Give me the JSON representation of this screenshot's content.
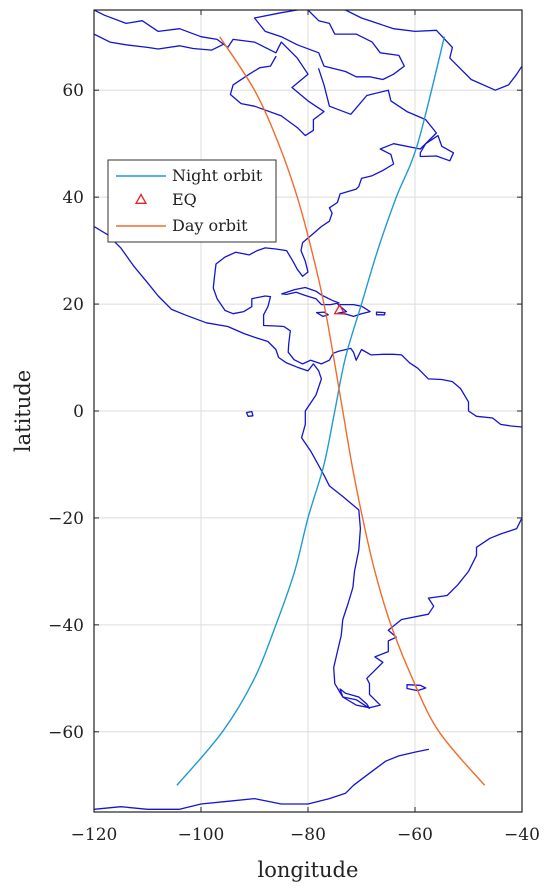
{
  "chart_data": {
    "type": "map",
    "xlabel": "longitude",
    "ylabel": "latitude",
    "xlim": [
      -120,
      -40
    ],
    "ylim": [
      -75,
      75
    ],
    "x_ticks": [
      -120,
      -100,
      -80,
      -60,
      -40
    ],
    "y_ticks": [
      -60,
      -40,
      -20,
      0,
      20,
      40,
      60
    ],
    "x_tick_labels": [
      "−120",
      "−100",
      "−80",
      "−60",
      "−40"
    ],
    "y_tick_labels": [
      "−60",
      "−40",
      "−20",
      "0",
      "20",
      "40",
      "60"
    ],
    "grid": true,
    "legend_position": "upper-left",
    "colors": {
      "coastline": "#1414d2",
      "night_orbit": "#1f9bd0",
      "day_orbit": "#f26b2a",
      "eq": "#e8201f"
    },
    "series": [
      {
        "name": "Night orbit",
        "kind": "line",
        "x": [
          -104.5,
          -96,
          -90,
          -86,
          -82.5,
          -80,
          -77,
          -75,
          -73,
          -70,
          -67,
          -63.5,
          -59.5,
          -54.5
        ],
        "y": [
          -70,
          -60,
          -50,
          -40,
          -30,
          -20,
          -10,
          0,
          10,
          20,
          30,
          40,
          50,
          70
        ]
      },
      {
        "name": "EQ",
        "kind": "marker",
        "marker": "triangle",
        "x": [
          -74.1
        ],
        "y": [
          18.8
        ]
      },
      {
        "name": "Day orbit",
        "kind": "line",
        "x": [
          -96.5,
          -90,
          -85.5,
          -82,
          -79.3,
          -77,
          -75.2,
          -73.5,
          -71.8,
          -69.8,
          -67.5,
          -64.5,
          -60.5,
          -55.5,
          -47
        ],
        "y": [
          70,
          60,
          50,
          40,
          30,
          20,
          10,
          0,
          -10,
          -20,
          -30,
          -40,
          -50,
          -60,
          -70
        ]
      }
    ],
    "coastlines": [
      [
        [
          -120,
          34.5
        ],
        [
          -117.5,
          33
        ],
        [
          -115,
          30.5
        ],
        [
          -112.5,
          27
        ],
        [
          -110,
          24
        ],
        [
          -108,
          21.5
        ],
        [
          -105.5,
          19
        ],
        [
          -103,
          18
        ],
        [
          -99,
          16.5
        ],
        [
          -95,
          15.8
        ],
        [
          -92,
          14.5
        ],
        [
          -90,
          13.8
        ],
        [
          -87.5,
          13
        ],
        [
          -86,
          11.5
        ],
        [
          -85.5,
          10
        ],
        [
          -84,
          9
        ],
        [
          -82,
          8.2
        ],
        [
          -80,
          7.5
        ],
        [
          -79,
          8.8
        ],
        [
          -78,
          7.5
        ],
        [
          -77.5,
          6
        ],
        [
          -78.5,
          3
        ],
        [
          -80.5,
          0
        ],
        [
          -80.5,
          -2.5
        ],
        [
          -81.2,
          -5
        ],
        [
          -79.5,
          -7.5
        ],
        [
          -77,
          -12
        ],
        [
          -76,
          -14
        ],
        [
          -73.5,
          -16
        ],
        [
          -70.5,
          -18.5
        ],
        [
          -70.2,
          -22
        ],
        [
          -70.5,
          -26
        ],
        [
          -71.3,
          -30
        ],
        [
          -71.6,
          -33
        ],
        [
          -72.5,
          -36
        ],
        [
          -73.5,
          -39
        ],
        [
          -73.8,
          -42
        ],
        [
          -74.5,
          -45
        ],
        [
          -75.2,
          -48
        ],
        [
          -75,
          -51
        ],
        [
          -73.5,
          -53.5
        ],
        [
          -71,
          -55
        ],
        [
          -68.5,
          -55.5
        ],
        [
          -66.5,
          -55
        ],
        [
          -68.5,
          -53
        ],
        [
          -68.5,
          -51
        ],
        [
          -69,
          -50
        ],
        [
          -67.5,
          -48.5
        ],
        [
          -66,
          -47
        ],
        [
          -67.5,
          -46
        ],
        [
          -65,
          -45
        ],
        [
          -65,
          -43
        ],
        [
          -63.5,
          -42.3
        ],
        [
          -65,
          -41
        ],
        [
          -62.5,
          -39
        ],
        [
          -57.5,
          -38
        ],
        [
          -56.5,
          -36.5
        ],
        [
          -57.5,
          -35
        ],
        [
          -54,
          -34.5
        ],
        [
          -52,
          -32.5
        ],
        [
          -50,
          -30
        ],
        [
          -48.5,
          -27
        ],
        [
          -48.5,
          -25.5
        ],
        [
          -46,
          -23.8
        ],
        [
          -44,
          -23
        ],
        [
          -41,
          -22
        ],
        [
          -40,
          -20
        ]
      ],
      [
        [
          -120,
          75
        ],
        [
          -118,
          74
        ],
        [
          -114,
          72.5
        ],
        [
          -111,
          73
        ],
        [
          -108,
          71
        ],
        [
          -104,
          71.5
        ],
        [
          -100,
          70
        ],
        [
          -97,
          69.5
        ],
        [
          -95,
          68
        ],
        [
          -94,
          69.5
        ],
        [
          -90,
          69
        ],
        [
          -88,
          68
        ],
        [
          -86,
          67
        ],
        [
          -85,
          69
        ],
        [
          -82,
          66
        ],
        [
          -80,
          63
        ],
        [
          -83,
          60.5
        ],
        [
          -80,
          58
        ],
        [
          -77,
          56
        ],
        [
          -79,
          54.5
        ],
        [
          -79,
          52.5
        ],
        [
          -80.5,
          51.5
        ],
        [
          -82,
          53
        ],
        [
          -85,
          55.2
        ],
        [
          -90,
          57
        ],
        [
          -92.5,
          57.5
        ],
        [
          -94.5,
          59.2
        ],
        [
          -94,
          61
        ],
        [
          -91,
          63
        ],
        [
          -89,
          64.2
        ],
        [
          -87,
          64.5
        ],
        [
          -86,
          66.3
        ]
      ],
      [
        [
          -78,
          64
        ],
        [
          -77,
          61
        ],
        [
          -76,
          57
        ],
        [
          -72,
          55.5
        ],
        [
          -69,
          59
        ],
        [
          -65,
          60
        ],
        [
          -64.5,
          58
        ],
        [
          -61.5,
          56
        ],
        [
          -58,
          54.5
        ],
        [
          -56,
          52
        ],
        [
          -59,
          49
        ],
        [
          -64,
          50
        ],
        [
          -66.5,
          49
        ],
        [
          -64.5,
          48
        ],
        [
          -64,
          46.2
        ],
        [
          -66,
          45
        ],
        [
          -68,
          44
        ],
        [
          -70,
          43.5
        ],
        [
          -70.5,
          42
        ],
        [
          -71,
          41.5
        ],
        [
          -74,
          40.6
        ],
        [
          -74.5,
          39
        ],
        [
          -76,
          38
        ],
        [
          -75.5,
          37
        ],
        [
          -76,
          35.5
        ],
        [
          -77.5,
          34.5
        ],
        [
          -79,
          33.2
        ],
        [
          -81,
          31.5
        ],
        [
          -81.3,
          30
        ],
        [
          -80.5,
          28
        ],
        [
          -80,
          26
        ],
        [
          -81,
          25.2
        ],
        [
          -82,
          26.5
        ],
        [
          -82.8,
          28
        ],
        [
          -84,
          30
        ],
        [
          -86,
          30.3
        ],
        [
          -88,
          30.5
        ],
        [
          -89.5,
          30
        ],
        [
          -91,
          29.2
        ],
        [
          -93.5,
          29.7
        ],
        [
          -95.5,
          28.8
        ],
        [
          -97.2,
          27.5
        ],
        [
          -97.5,
          25
        ],
        [
          -97.7,
          23
        ],
        [
          -97,
          21
        ],
        [
          -95.5,
          18.8
        ],
        [
          -94,
          18.2
        ],
        [
          -92,
          18.6
        ],
        [
          -90.5,
          19.5
        ],
        [
          -90.5,
          21
        ],
        [
          -88,
          21.5
        ],
        [
          -87,
          21.4
        ],
        [
          -87.5,
          19.5
        ],
        [
          -88.3,
          18
        ],
        [
          -88.3,
          16
        ],
        [
          -86,
          15.9
        ],
        [
          -84.5,
          15.8
        ],
        [
          -83.3,
          15
        ],
        [
          -83.6,
          12.5
        ],
        [
          -83.7,
          11
        ],
        [
          -82.6,
          9.6
        ],
        [
          -81,
          8.8
        ],
        [
          -79.5,
          9.5
        ],
        [
          -77.5,
          8.8
        ],
        [
          -76,
          9.5
        ],
        [
          -75.3,
          10.8
        ],
        [
          -74.2,
          11.2
        ],
        [
          -72,
          11.7
        ],
        [
          -71.5,
          11
        ],
        [
          -71,
          9.5
        ],
        [
          -70,
          11.5
        ],
        [
          -68.2,
          10.5
        ],
        [
          -66,
          10.6
        ],
        [
          -64,
          10.6
        ],
        [
          -62.5,
          10.5
        ],
        [
          -61,
          9
        ],
        [
          -59.5,
          8
        ],
        [
          -57.5,
          6
        ],
        [
          -55,
          5.9
        ],
        [
          -53,
          5.5
        ],
        [
          -51.5,
          4.2
        ],
        [
          -50,
          1.7
        ],
        [
          -50,
          0
        ],
        [
          -48.5,
          -1
        ],
        [
          -45.5,
          -1.3
        ],
        [
          -44,
          -2.5
        ],
        [
          -42,
          -2.8
        ],
        [
          -40,
          -3
        ]
      ],
      [
        [
          -84.9,
          21.9
        ],
        [
          -82.5,
          22.7
        ],
        [
          -80.5,
          23.1
        ],
        [
          -78.5,
          22.4
        ],
        [
          -77.5,
          21.7
        ],
        [
          -75.5,
          20.7
        ],
        [
          -74.2,
          20.2
        ],
        [
          -75.8,
          19.9
        ],
        [
          -77.5,
          19.9
        ],
        [
          -78.5,
          21
        ],
        [
          -80.5,
          21.6
        ],
        [
          -82.2,
          22.2
        ],
        [
          -84,
          21.8
        ],
        [
          -84.9,
          21.9
        ]
      ],
      [
        [
          -74.4,
          19.9
        ],
        [
          -72.5,
          19.9
        ],
        [
          -71.5,
          19.9
        ],
        [
          -70,
          19.6
        ],
        [
          -68.4,
          18.6
        ],
        [
          -70,
          18.2
        ],
        [
          -71.5,
          17.7
        ],
        [
          -72.8,
          18.1
        ],
        [
          -74.4,
          18.3
        ],
        [
          -72.8,
          18.6
        ],
        [
          -74.4,
          19.9
        ]
      ],
      [
        [
          -78.4,
          18.4
        ],
        [
          -77,
          18.5
        ],
        [
          -76.2,
          18
        ],
        [
          -77.2,
          17.7
        ],
        [
          -78.4,
          18.4
        ]
      ],
      [
        [
          -67.2,
          18.5
        ],
        [
          -65.6,
          18.4
        ],
        [
          -65.7,
          18
        ],
        [
          -67.2,
          18
        ],
        [
          -67.2,
          18.5
        ]
      ],
      [
        [
          -80,
          75
        ],
        [
          -78,
          73
        ],
        [
          -76,
          72.5
        ],
        [
          -75,
          70.5
        ],
        [
          -71,
          70.5
        ],
        [
          -68,
          69
        ],
        [
          -66.5,
          67
        ],
        [
          -63,
          66.5
        ],
        [
          -62,
          64.5
        ],
        [
          -64,
          63
        ],
        [
          -66,
          62
        ],
        [
          -68.5,
          62.5
        ],
        [
          -71,
          62.5
        ],
        [
          -73,
          63.5
        ],
        [
          -77,
          64.5
        ],
        [
          -78,
          67
        ],
        [
          -82,
          68.5
        ],
        [
          -85,
          70
        ],
        [
          -88,
          71
        ],
        [
          -90,
          73.5
        ],
        [
          -85,
          74.5
        ],
        [
          -82,
          75
        ]
      ],
      [
        [
          -73,
          75
        ],
        [
          -70,
          73.5
        ],
        [
          -64,
          71.5
        ],
        [
          -60,
          71
        ],
        [
          -56,
          71.2
        ],
        [
          -53,
          68
        ],
        [
          -53.5,
          66
        ],
        [
          -51.5,
          64
        ],
        [
          -49.5,
          62
        ],
        [
          -45,
          60
        ],
        [
          -42.5,
          61
        ],
        [
          -41,
          63
        ],
        [
          -40,
          64.5
        ]
      ],
      [
        [
          -120,
          70.5
        ],
        [
          -117,
          69
        ],
        [
          -114,
          68.5
        ],
        [
          -110,
          68
        ],
        [
          -108,
          67.7
        ],
        [
          -104,
          68.3
        ],
        [
          -101.5,
          67.8
        ],
        [
          -98,
          67.5
        ],
        [
          -96,
          68.5
        ]
      ],
      [
        [
          -59,
          47.6
        ],
        [
          -56,
          47.7
        ],
        [
          -53.5,
          46.8
        ],
        [
          -52.8,
          48.3
        ],
        [
          -55,
          49.5
        ],
        [
          -55.7,
          51.5
        ],
        [
          -58,
          50
        ],
        [
          -59,
          48.3
        ],
        [
          -59,
          47.6
        ]
      ],
      [
        [
          -61.5,
          -51.2
        ],
        [
          -59,
          -51.3
        ],
        [
          -58,
          -51.8
        ],
        [
          -59.5,
          -52.3
        ],
        [
          -61.5,
          -51.9
        ],
        [
          -61.5,
          -51.2
        ]
      ],
      [
        [
          -120,
          -74.5
        ],
        [
          -115,
          -74
        ],
        [
          -110,
          -74.5
        ],
        [
          -104,
          -74.5
        ],
        [
          -100,
          -73.5
        ],
        [
          -95,
          -73
        ],
        [
          -90,
          -72.5
        ],
        [
          -85,
          -73.5
        ],
        [
          -80,
          -73.5
        ],
        [
          -76,
          -72.5
        ],
        [
          -73,
          -71.5
        ],
        [
          -71.5,
          -70
        ],
        [
          -69.5,
          -68.5
        ],
        [
          -67.5,
          -67
        ],
        [
          -65.5,
          -65.5
        ],
        [
          -63,
          -64.5
        ],
        [
          -60,
          -63.8
        ],
        [
          -57.5,
          -63.3
        ]
      ],
      [
        [
          -68.5,
          -55.6
        ],
        [
          -71,
          -54
        ],
        [
          -73.5,
          -53.5
        ],
        [
          -74,
          -52
        ],
        [
          -73,
          -52.8
        ],
        [
          -70.5,
          -53.5
        ],
        [
          -69,
          -54.8
        ],
        [
          -68.5,
          -55.6
        ]
      ],
      [
        [
          -91.5,
          -0.3
        ],
        [
          -90.5,
          -0.1
        ],
        [
          -90.3,
          -0.9
        ],
        [
          -91.2,
          -1
        ],
        [
          -91.5,
          -0.3
        ]
      ]
    ]
  },
  "legend": {
    "items": [
      {
        "label": "Night orbit",
        "color": "#1f9bd0",
        "marker": "line"
      },
      {
        "label": "EQ",
        "color": "#e8201f",
        "marker": "triangle"
      },
      {
        "label": "Day orbit",
        "color": "#f26b2a",
        "marker": "line"
      }
    ]
  }
}
